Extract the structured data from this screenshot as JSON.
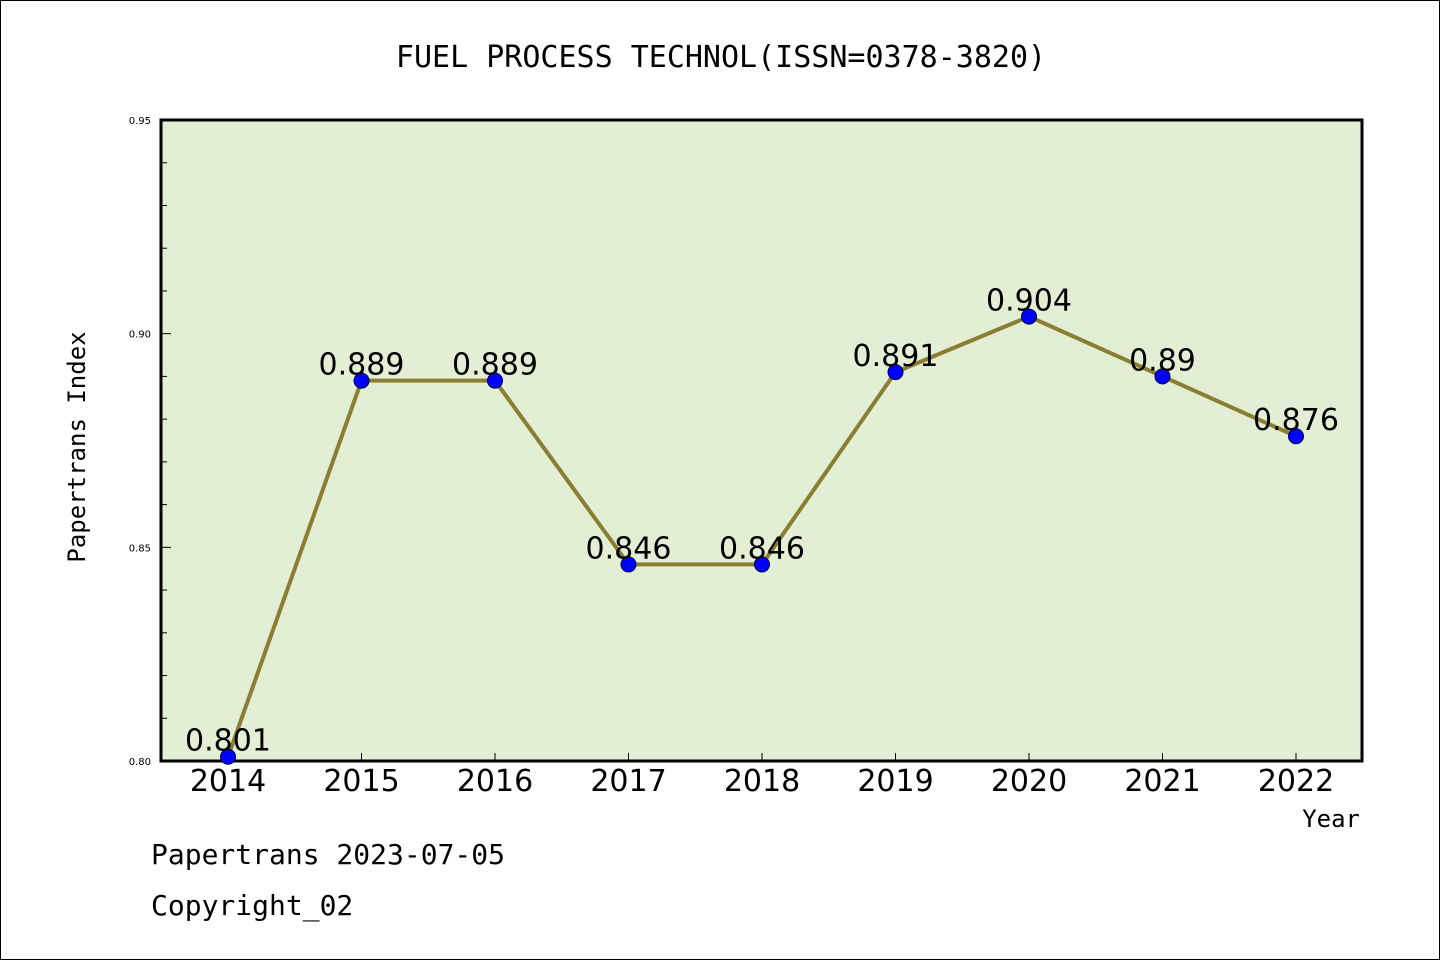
{
  "chart_data": {
    "type": "line",
    "title": "FUEL PROCESS TECHNOL(ISSN=0378-3820)",
    "xlabel": "Year",
    "ylabel": "Papertrans Index",
    "categories": [
      "2014",
      "2015",
      "2016",
      "2017",
      "2018",
      "2019",
      "2020",
      "2021",
      "2022"
    ],
    "values": [
      0.801,
      0.889,
      0.889,
      0.846,
      0.846,
      0.891,
      0.904,
      0.89,
      0.876
    ],
    "data_labels": [
      "0.801",
      "0.889",
      "0.889",
      "0.846",
      "0.846",
      "0.891",
      "0.904",
      "0.89",
      "0.876"
    ],
    "ylim": [
      0.8,
      0.95
    ],
    "yticks": [
      "0.80",
      "0.85",
      "0.90",
      "0.95"
    ],
    "grid": false,
    "colors": {
      "line": "#8b7d32",
      "marker": "#0000ff",
      "plot_background": "#e2efd5",
      "frame": "#000000"
    }
  },
  "footer": {
    "line1": "Papertrans 2023-07-05",
    "line2": "Copyright_02"
  }
}
